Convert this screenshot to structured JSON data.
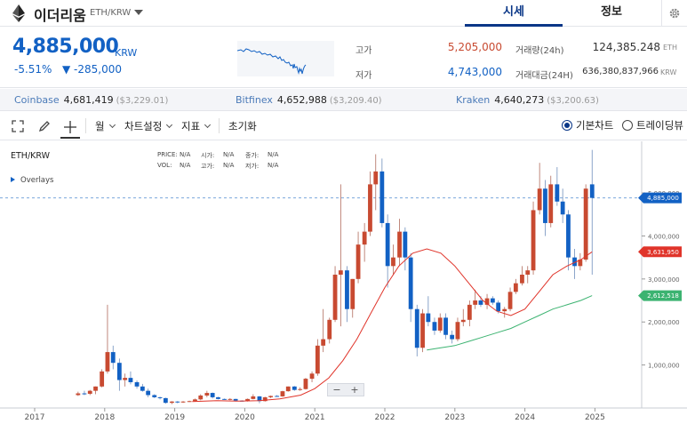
{
  "header": {
    "coin_name": "이더리움",
    "coin_pair": "ETH/KRW",
    "tabs": [
      "시세",
      "정보"
    ]
  },
  "summary": {
    "price": "4,885,000",
    "unit": "KRW",
    "change_pct": "-5.51%",
    "change_abs": "▼ -285,000",
    "high_label": "고가",
    "high_value": "5,205,000",
    "low_label": "저가",
    "low_value": "4,743,000",
    "volume_label": "거래량(24h)",
    "volume_value": "124,385.248",
    "volume_unit": "ETH",
    "amount_label": "거래대금(24H)",
    "amount_value": "636,380,837,966",
    "amount_unit": "KRW"
  },
  "exchanges": [
    {
      "name": "Coinbase",
      "price": "4,681,419",
      "usd": "($3,229.01)"
    },
    {
      "name": "Bitfinex",
      "price": "4,652,988",
      "usd": "($3,209.40)"
    },
    {
      "name": "Kraken",
      "price": "4,640,273",
      "usd": "($3,200.63)"
    }
  ],
  "toolbar": {
    "interval": "월",
    "chart_settings": "차트설정",
    "indicators": "지표",
    "reset": "초기화",
    "basic_chart": "기본차트",
    "tradingview": "트레이딩뷰"
  },
  "chart_header": {
    "pair": "ETH/KRW",
    "price_lbl": "PRICE:",
    "price_val": "N/A",
    "open_lbl": "시가:",
    "open_val": "N/A",
    "close_lbl": "종가:",
    "close_val": "N/A",
    "vol_lbl": "VOL:",
    "vol_val": "N/A",
    "high_lbl": "고가:",
    "high_val": "N/A",
    "low_lbl": "저가:",
    "low_val": "N/A",
    "overlays": "Overlays"
  },
  "zoom": {
    "minus": "−",
    "plus": "+"
  },
  "colors": {
    "accent": "#093687",
    "up": "#c84a31",
    "down": "#1261c4",
    "ma_red": "#e0342a",
    "ma_green": "#3cb371"
  },
  "chart_data": {
    "type": "candlestick",
    "x": [
      "2017",
      "2018",
      "2019",
      "2020",
      "2021",
      "2022",
      "2023",
      "2024",
      "2025"
    ],
    "y_ticks": [
      "1,000,000",
      "2,000,000",
      "3,000,000",
      "4,000,000",
      "5,000,000"
    ],
    "y_ticks_values": [
      1000000,
      2000000,
      3000000,
      4000000,
      5000000
    ],
    "ylim": [
      0,
      6200000
    ],
    "price_labels": [
      {
        "value": 4885000,
        "label": "4,885,000",
        "color": "#1261c4"
      },
      {
        "value": 3631950,
        "label": "3,631,950",
        "color": "#e0342a"
      },
      {
        "value": 2612518,
        "label": "2,612,518",
        "color": "#3cb371"
      }
    ],
    "candles": [
      {
        "t": 2017.62,
        "o": 300000,
        "h": 380000,
        "l": 280000,
        "c": 340000
      },
      {
        "t": 2017.71,
        "o": 340000,
        "h": 400000,
        "l": 300000,
        "c": 330000
      },
      {
        "t": 2017.79,
        "o": 330000,
        "h": 420000,
        "l": 300000,
        "c": 400000
      },
      {
        "t": 2017.87,
        "o": 400000,
        "h": 500000,
        "l": 320000,
        "c": 500000
      },
      {
        "t": 2017.96,
        "o": 500000,
        "h": 900000,
        "l": 480000,
        "c": 850000
      },
      {
        "t": 2018.04,
        "o": 850000,
        "h": 2400000,
        "l": 800000,
        "c": 1300000
      },
      {
        "t": 2018.12,
        "o": 1300000,
        "h": 1450000,
        "l": 900000,
        "c": 1050000
      },
      {
        "t": 2018.21,
        "o": 1050000,
        "h": 1150000,
        "l": 400000,
        "c": 650000
      },
      {
        "t": 2018.29,
        "o": 650000,
        "h": 800000,
        "l": 500000,
        "c": 700000
      },
      {
        "t": 2018.37,
        "o": 700000,
        "h": 850000,
        "l": 550000,
        "c": 600000
      },
      {
        "t": 2018.46,
        "o": 600000,
        "h": 640000,
        "l": 450000,
        "c": 500000
      },
      {
        "t": 2018.54,
        "o": 500000,
        "h": 560000,
        "l": 380000,
        "c": 400000
      },
      {
        "t": 2018.62,
        "o": 400000,
        "h": 450000,
        "l": 250000,
        "c": 300000
      },
      {
        "t": 2018.71,
        "o": 300000,
        "h": 320000,
        "l": 230000,
        "c": 250000
      },
      {
        "t": 2018.79,
        "o": 250000,
        "h": 260000,
        "l": 200000,
        "c": 230000
      },
      {
        "t": 2018.87,
        "o": 230000,
        "h": 240000,
        "l": 100000,
        "c": 120000
      },
      {
        "t": 2018.96,
        "o": 120000,
        "h": 160000,
        "l": 90000,
        "c": 150000
      },
      {
        "t": 2019.04,
        "o": 150000,
        "h": 160000,
        "l": 110000,
        "c": 130000
      },
      {
        "t": 2019.12,
        "o": 130000,
        "h": 160000,
        "l": 120000,
        "c": 150000
      },
      {
        "t": 2019.21,
        "o": 150000,
        "h": 170000,
        "l": 140000,
        "c": 160000
      },
      {
        "t": 2019.29,
        "o": 160000,
        "h": 220000,
        "l": 150000,
        "c": 200000
      },
      {
        "t": 2019.37,
        "o": 200000,
        "h": 320000,
        "l": 180000,
        "c": 290000
      },
      {
        "t": 2019.46,
        "o": 290000,
        "h": 400000,
        "l": 250000,
        "c": 350000
      },
      {
        "t": 2019.54,
        "o": 350000,
        "h": 360000,
        "l": 220000,
        "c": 250000
      },
      {
        "t": 2019.62,
        "o": 250000,
        "h": 260000,
        "l": 200000,
        "c": 210000
      },
      {
        "t": 2019.71,
        "o": 210000,
        "h": 220000,
        "l": 190000,
        "c": 200000
      },
      {
        "t": 2019.79,
        "o": 200000,
        "h": 230000,
        "l": 180000,
        "c": 210000
      },
      {
        "t": 2019.87,
        "o": 210000,
        "h": 215000,
        "l": 150000,
        "c": 170000
      },
      {
        "t": 2019.96,
        "o": 170000,
        "h": 180000,
        "l": 150000,
        "c": 155000
      },
      {
        "t": 2020.04,
        "o": 155000,
        "h": 220000,
        "l": 150000,
        "c": 210000
      },
      {
        "t": 2020.12,
        "o": 210000,
        "h": 320000,
        "l": 200000,
        "c": 270000
      },
      {
        "t": 2020.21,
        "o": 270000,
        "h": 280000,
        "l": 110000,
        "c": 160000
      },
      {
        "t": 2020.29,
        "o": 160000,
        "h": 260000,
        "l": 150000,
        "c": 250000
      },
      {
        "t": 2020.37,
        "o": 250000,
        "h": 290000,
        "l": 230000,
        "c": 280000
      },
      {
        "t": 2020.46,
        "o": 280000,
        "h": 300000,
        "l": 260000,
        "c": 270000
      },
      {
        "t": 2020.54,
        "o": 270000,
        "h": 400000,
        "l": 260000,
        "c": 390000
      },
      {
        "t": 2020.62,
        "o": 390000,
        "h": 500000,
        "l": 380000,
        "c": 500000
      },
      {
        "t": 2020.71,
        "o": 500000,
        "h": 510000,
        "l": 400000,
        "c": 420000
      },
      {
        "t": 2020.79,
        "o": 420000,
        "h": 480000,
        "l": 400000,
        "c": 440000
      },
      {
        "t": 2020.87,
        "o": 440000,
        "h": 700000,
        "l": 430000,
        "c": 680000
      },
      {
        "t": 2020.96,
        "o": 680000,
        "h": 850000,
        "l": 600000,
        "c": 800000
      },
      {
        "t": 2021.04,
        "o": 800000,
        "h": 1600000,
        "l": 750000,
        "c": 1450000
      },
      {
        "t": 2021.12,
        "o": 1450000,
        "h": 2300000,
        "l": 1300000,
        "c": 1600000
      },
      {
        "t": 2021.21,
        "o": 1600000,
        "h": 2100000,
        "l": 1500000,
        "c": 2050000
      },
      {
        "t": 2021.29,
        "o": 2050000,
        "h": 3300000,
        "l": 2000000,
        "c": 3100000
      },
      {
        "t": 2021.37,
        "o": 3100000,
        "h": 5200000,
        "l": 1900000,
        "c": 3200000
      },
      {
        "t": 2021.46,
        "o": 3200000,
        "h": 3300000,
        "l": 2000000,
        "c": 2300000
      },
      {
        "t": 2021.54,
        "o": 2300000,
        "h": 3000000,
        "l": 2100000,
        "c": 3000000
      },
      {
        "t": 2021.62,
        "o": 3000000,
        "h": 4100000,
        "l": 2900000,
        "c": 3800000
      },
      {
        "t": 2021.71,
        "o": 3800000,
        "h": 4300000,
        "l": 3400000,
        "c": 4100000
      },
      {
        "t": 2021.79,
        "o": 4100000,
        "h": 5500000,
        "l": 4000000,
        "c": 5200000
      },
      {
        "t": 2021.87,
        "o": 5200000,
        "h": 5900000,
        "l": 4600000,
        "c": 5500000
      },
      {
        "t": 2021.96,
        "o": 5500000,
        "h": 5800000,
        "l": 4200000,
        "c": 4300000
      },
      {
        "t": 2022.04,
        "o": 4300000,
        "h": 4500000,
        "l": 2800000,
        "c": 3300000
      },
      {
        "t": 2022.12,
        "o": 3300000,
        "h": 3800000,
        "l": 3100000,
        "c": 3500000
      },
      {
        "t": 2022.21,
        "o": 3500000,
        "h": 4400000,
        "l": 3300000,
        "c": 4100000
      },
      {
        "t": 2022.29,
        "o": 4100000,
        "h": 4200000,
        "l": 3200000,
        "c": 3500000
      },
      {
        "t": 2022.37,
        "o": 3500000,
        "h": 3600000,
        "l": 2000000,
        "c": 2300000
      },
      {
        "t": 2022.46,
        "o": 2300000,
        "h": 2400000,
        "l": 1200000,
        "c": 1400000
      },
      {
        "t": 2022.54,
        "o": 1400000,
        "h": 2300000,
        "l": 1300000,
        "c": 2200000
      },
      {
        "t": 2022.62,
        "o": 2200000,
        "h": 2600000,
        "l": 1900000,
        "c": 2000000
      },
      {
        "t": 2022.71,
        "o": 2000000,
        "h": 2100000,
        "l": 1700000,
        "c": 1800000
      },
      {
        "t": 2022.79,
        "o": 1800000,
        "h": 2200000,
        "l": 1750000,
        "c": 2100000
      },
      {
        "t": 2022.87,
        "o": 2100000,
        "h": 2200000,
        "l": 1600000,
        "c": 1700000
      },
      {
        "t": 2022.96,
        "o": 1700000,
        "h": 1800000,
        "l": 1500000,
        "c": 1600000
      },
      {
        "t": 2023.04,
        "o": 1600000,
        "h": 2100000,
        "l": 1550000,
        "c": 2000000
      },
      {
        "t": 2023.12,
        "o": 2000000,
        "h": 2300000,
        "l": 1900000,
        "c": 2050000
      },
      {
        "t": 2023.21,
        "o": 2050000,
        "h": 2500000,
        "l": 1900000,
        "c": 2400000
      },
      {
        "t": 2023.29,
        "o": 2400000,
        "h": 2750000,
        "l": 2300000,
        "c": 2500000
      },
      {
        "t": 2023.37,
        "o": 2500000,
        "h": 2600000,
        "l": 2350000,
        "c": 2400000
      },
      {
        "t": 2023.46,
        "o": 2400000,
        "h": 2650000,
        "l": 2300000,
        "c": 2550000
      },
      {
        "t": 2023.54,
        "o": 2550000,
        "h": 2600000,
        "l": 2400000,
        "c": 2450000
      },
      {
        "t": 2023.62,
        "o": 2450000,
        "h": 2500000,
        "l": 2200000,
        "c": 2250000
      },
      {
        "t": 2023.71,
        "o": 2250000,
        "h": 2350000,
        "l": 2100000,
        "c": 2300000
      },
      {
        "t": 2023.79,
        "o": 2300000,
        "h": 2800000,
        "l": 2250000,
        "c": 2700000
      },
      {
        "t": 2023.87,
        "o": 2700000,
        "h": 3000000,
        "l": 2650000,
        "c": 2900000
      },
      {
        "t": 2023.96,
        "o": 2900000,
        "h": 3300000,
        "l": 2850000,
        "c": 3100000
      },
      {
        "t": 2024.04,
        "o": 3100000,
        "h": 3300000,
        "l": 2900000,
        "c": 3200000
      },
      {
        "t": 2024.12,
        "o": 3200000,
        "h": 4800000,
        "l": 3100000,
        "c": 4600000
      },
      {
        "t": 2024.21,
        "o": 4600000,
        "h": 5700000,
        "l": 4500000,
        "c": 5100000
      },
      {
        "t": 2024.29,
        "o": 5100000,
        "h": 5300000,
        "l": 4000000,
        "c": 4300000
      },
      {
        "t": 2024.37,
        "o": 4300000,
        "h": 5400000,
        "l": 4200000,
        "c": 5200000
      },
      {
        "t": 2024.46,
        "o": 5200000,
        "h": 5600000,
        "l": 4700000,
        "c": 4800000
      },
      {
        "t": 2024.54,
        "o": 4800000,
        "h": 5100000,
        "l": 4300000,
        "c": 4500000
      },
      {
        "t": 2024.62,
        "o": 4500000,
        "h": 4600000,
        "l": 3200000,
        "c": 3500000
      },
      {
        "t": 2024.71,
        "o": 3500000,
        "h": 3700000,
        "l": 3000000,
        "c": 3300000
      },
      {
        "t": 2024.79,
        "o": 3300000,
        "h": 3600000,
        "l": 3200000,
        "c": 3450000
      },
      {
        "t": 2024.87,
        "o": 3450000,
        "h": 5200000,
        "l": 3400000,
        "c": 5100000
      },
      {
        "t": 2024.96,
        "o": 5200000,
        "h": 6000000,
        "l": 3100000,
        "c": 4885000
      }
    ],
    "ma_red": [
      [
        2019.25,
        150000
      ],
      [
        2019.6,
        170000
      ],
      [
        2019.9,
        160000
      ],
      [
        2020.2,
        170000
      ],
      [
        2020.5,
        210000
      ],
      [
        2020.8,
        300000
      ],
      [
        2021.0,
        450000
      ],
      [
        2021.2,
        700000
      ],
      [
        2021.4,
        1100000
      ],
      [
        2021.6,
        1600000
      ],
      [
        2021.8,
        2200000
      ],
      [
        2022.0,
        2800000
      ],
      [
        2022.2,
        3300000
      ],
      [
        2022.4,
        3600000
      ],
      [
        2022.6,
        3700000
      ],
      [
        2022.8,
        3600000
      ],
      [
        2023.0,
        3300000
      ],
      [
        2023.2,
        2900000
      ],
      [
        2023.4,
        2500000
      ],
      [
        2023.6,
        2250000
      ],
      [
        2023.8,
        2150000
      ],
      [
        2024.0,
        2300000
      ],
      [
        2024.2,
        2700000
      ],
      [
        2024.4,
        3100000
      ],
      [
        2024.6,
        3300000
      ],
      [
        2024.8,
        3450000
      ],
      [
        2024.96,
        3631950
      ]
    ],
    "ma_green": [
      [
        2022.6,
        1350000
      ],
      [
        2022.8,
        1400000
      ],
      [
        2023.0,
        1450000
      ],
      [
        2023.2,
        1550000
      ],
      [
        2023.4,
        1650000
      ],
      [
        2023.6,
        1750000
      ],
      [
        2023.8,
        1850000
      ],
      [
        2024.0,
        2000000
      ],
      [
        2024.2,
        2150000
      ],
      [
        2024.4,
        2300000
      ],
      [
        2024.6,
        2400000
      ],
      [
        2024.8,
        2500000
      ],
      [
        2024.96,
        2612518
      ]
    ]
  }
}
